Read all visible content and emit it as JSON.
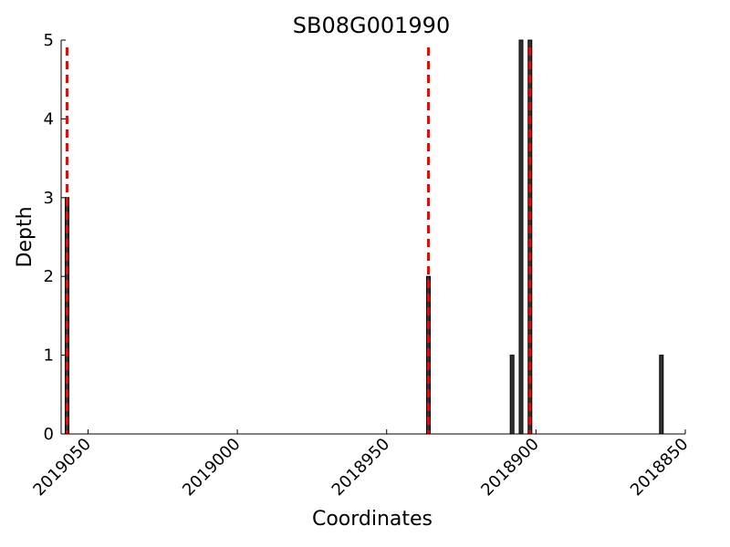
{
  "chart_data": {
    "type": "bar",
    "title": "SB08G001990",
    "xlabel": "Coordinates",
    "ylabel": "Depth",
    "x_reversed": true,
    "xlim": [
      2019059,
      2018850
    ],
    "ylim": [
      0,
      5
    ],
    "x_ticks": [
      2019050,
      2019000,
      2018950,
      2018900,
      2018850
    ],
    "x_tick_labels": [
      "2019050",
      "2019000",
      "2018950",
      "2018900",
      "2018850"
    ],
    "y_ticks": [
      0,
      1,
      2,
      3,
      4,
      5
    ],
    "y_tick_labels": [
      "0",
      "1",
      "2",
      "3",
      "4",
      "5"
    ],
    "bars": [
      {
        "x": 2019057,
        "value": 3
      },
      {
        "x": 2018936,
        "value": 2
      },
      {
        "x": 2018908,
        "value": 1
      },
      {
        "x": 2018905,
        "value": 5
      },
      {
        "x": 2018902,
        "value": 5
      },
      {
        "x": 2018858,
        "value": 1
      }
    ],
    "reference_lines": [
      2019057,
      2018936,
      2018902
    ],
    "colors": {
      "bar_fill": "#333333",
      "bar_edge": "#000000",
      "reference_line": "#ff0000"
    },
    "grid": false,
    "legend": "none"
  }
}
